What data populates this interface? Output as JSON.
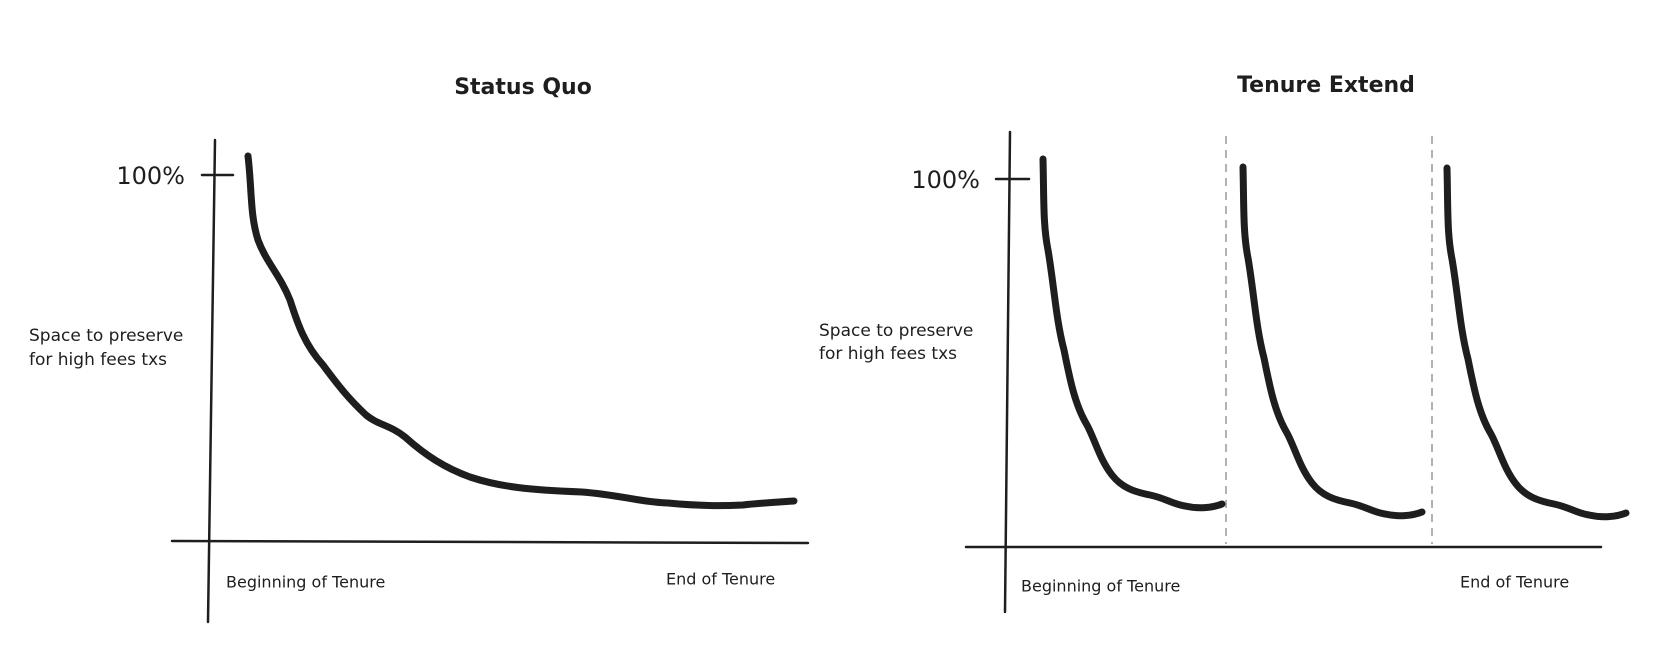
{
  "left": {
    "title": "Status Quo",
    "y_tick": "100%",
    "y_label": [
      "Space to preserve",
      "for high fees txs"
    ],
    "x_start": "Beginning of Tenure",
    "x_end": "End of Tenure"
  },
  "right": {
    "title": "Tenure Extend",
    "y_tick": "100%",
    "y_label": [
      "Space to preserve",
      "for high fees txs"
    ],
    "x_start": "Beginning of Tenure",
    "x_end": "End of Tenure"
  }
}
